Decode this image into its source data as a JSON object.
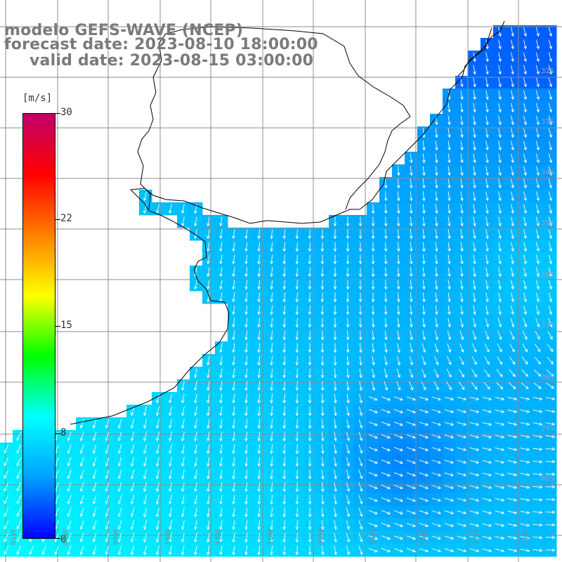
{
  "title": {
    "line1": "modelo GEFS-WAVE (NCEP)",
    "line2": "forecast date: 2023-08-10 18:00:00",
    "line3": "valid date: 2023-08-15 03:00:00"
  },
  "colorbar": {
    "unit": "[m/s]",
    "ticks": [
      {
        "label": "30",
        "value": 30
      },
      {
        "label": "22",
        "value": 22
      },
      {
        "label": "15",
        "value": 15
      },
      {
        "label": "8",
        "value": 8
      },
      {
        "label": "0",
        "value": 0
      }
    ],
    "range": [
      0,
      30
    ],
    "colors": [
      "#0000ff",
      "#00a0ff",
      "#00ffff",
      "#00ff00",
      "#ffff00",
      "#ff8000",
      "#ff0000",
      "#c0006a"
    ]
  },
  "axes": {
    "lon_labels": [
      "61W",
      "60W",
      "59W",
      "58W",
      "57W",
      "56W",
      "55W",
      "54W",
      "53W",
      "52W",
      "51W"
    ],
    "lat_labels": [
      "32S",
      "33S",
      "34S",
      "35S",
      "36S",
      "37S",
      "38S",
      "39S",
      "40S"
    ]
  },
  "field": {
    "variable": "wind speed",
    "arrow_color": "#ffffff",
    "land_color": "#ffffff",
    "coast_color": "#000000",
    "grid_color": "#808080"
  }
}
